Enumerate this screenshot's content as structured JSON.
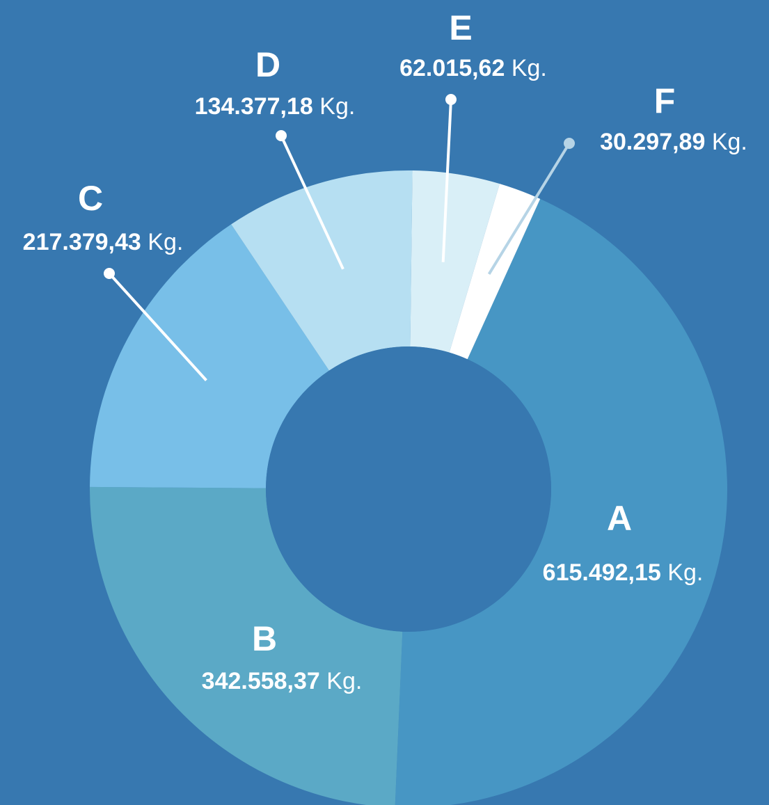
{
  "chart_data": {
    "type": "donut",
    "categories": [
      "A",
      "B",
      "C",
      "D",
      "E",
      "F"
    ],
    "values": [
      615492.15,
      342558.37,
      217379.43,
      134377.18,
      62015.62,
      30297.89
    ],
    "value_labels": [
      "615.492,15",
      "342.558,37",
      "217.379,43",
      "134.377,18",
      "62.015,62",
      "30.297,89"
    ],
    "unit": "Kg.",
    "colors": [
      "#4796c4",
      "#5ba9c6",
      "#78bfe8",
      "#b6dff2",
      "#d9eff7",
      "#ffffff"
    ]
  }
}
